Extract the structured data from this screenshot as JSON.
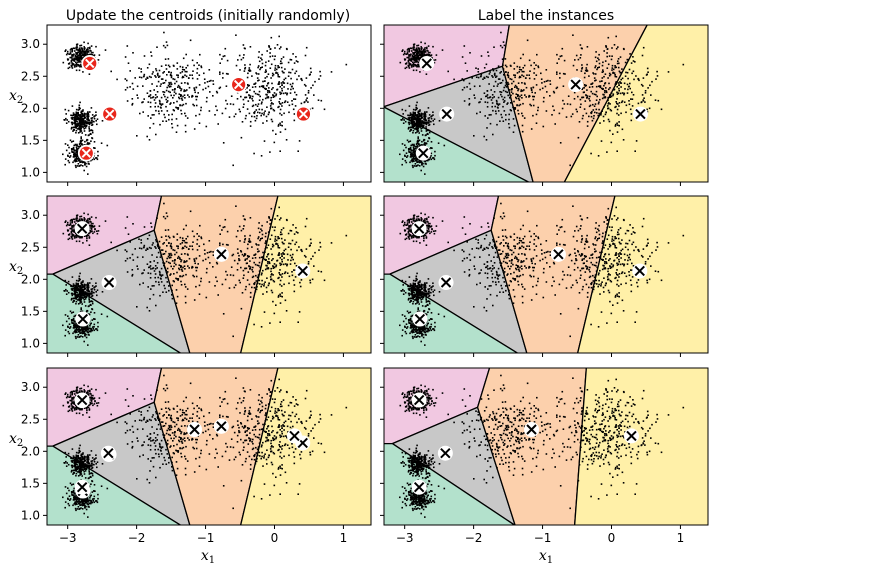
{
  "figure": {
    "titles": [
      "Update the centroids (initially randomly)",
      "Label the instances"
    ]
  },
  "chart_data": {
    "type": "scatter",
    "grid": false,
    "xlim": [
      -3.3,
      1.4
    ],
    "ylim": [
      0.85,
      3.3
    ],
    "x_ticks": [
      -3,
      -2,
      -1,
      0,
      1
    ],
    "y_ticks": [
      1.0,
      1.5,
      2.0,
      2.5,
      3.0
    ],
    "x_tick_labels": [
      "−3",
      "−2",
      "−1",
      "0",
      "1"
    ],
    "y_tick_labels": [
      "1.0",
      "1.5",
      "2.0",
      "2.5",
      "3.0"
    ],
    "xlabel": "x",
    "xlabel_sub": "1",
    "ylabel": "x",
    "ylabel_sub": "2",
    "region_colors": [
      "#f1c8e1",
      "#c8c8c8",
      "#fcd0ac",
      "#b3e1cc",
      "#fff0a8"
    ],
    "blobs": [
      {
        "center": [
          -2.8,
          2.8
        ],
        "std": 0.1,
        "n": 300
      },
      {
        "center": [
          -2.8,
          1.8
        ],
        "std": 0.1,
        "n": 300
      },
      {
        "center": [
          -2.8,
          1.3
        ],
        "std": 0.1,
        "n": 300
      },
      {
        "center": [
          -1.5,
          2.3
        ],
        "std": 0.3,
        "n": 320
      },
      {
        "center": [
          -0.1,
          2.3
        ],
        "std": 0.35,
        "n": 420
      }
    ],
    "iterations": [
      {
        "centroids": [
          [
            -2.68,
            2.7
          ],
          [
            -2.39,
            1.91
          ],
          [
            -0.52,
            2.37
          ],
          [
            -2.73,
            1.3
          ],
          [
            0.42,
            1.91
          ]
        ]
      },
      {
        "centroids": [
          [
            -2.79,
            2.79
          ],
          [
            -2.4,
            1.95
          ],
          [
            -0.77,
            2.39
          ],
          [
            -2.78,
            1.38
          ],
          [
            0.41,
            2.13
          ]
        ]
      },
      {
        "centroids": [
          [
            -2.79,
            2.8
          ],
          [
            -2.41,
            1.97
          ],
          [
            -1.16,
            2.34
          ],
          [
            -2.79,
            1.44
          ],
          [
            0.29,
            2.24
          ]
        ]
      }
    ],
    "panels": [
      {
        "col": 0,
        "row": 0,
        "iteration": 0,
        "regions": false,
        "centroid_style": "initial"
      },
      {
        "col": 1,
        "row": 0,
        "iteration": 0,
        "regions": true,
        "centroid_style": "cross"
      },
      {
        "col": 0,
        "row": 1,
        "iteration": 1,
        "regions": true,
        "centroid_style": "cross"
      },
      {
        "col": 1,
        "row": 1,
        "iteration": 1,
        "regions": true,
        "centroid_style": "cross"
      },
      {
        "col": 0,
        "row": 2,
        "iteration": 1,
        "regions": true,
        "centroid_style": "cross",
        "overlay_iteration": 2
      },
      {
        "col": 1,
        "row": 2,
        "iteration": 2,
        "regions": true,
        "centroid_style": "cross"
      }
    ]
  }
}
